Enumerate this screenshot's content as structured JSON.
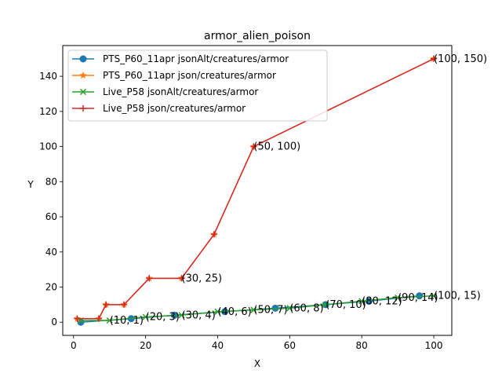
{
  "chart_data": {
    "type": "line",
    "title": "armor_alien_poison",
    "xlabel": "X",
    "ylabel": "Y",
    "xlim": [
      -3,
      105
    ],
    "ylim": [
      -7.5,
      157.5
    ],
    "xticks": [
      0,
      20,
      40,
      60,
      80,
      100
    ],
    "yticks": [
      0,
      20,
      40,
      60,
      80,
      100,
      120,
      140
    ],
    "legend_position": "top-left",
    "series": [
      {
        "name": "PTS_P60_11apr jsonAlt/creatures/armor",
        "color": "#1f77b4",
        "marker": "circle",
        "points": [
          [
            2,
            0
          ],
          [
            16,
            2
          ],
          [
            28,
            4
          ],
          [
            42,
            6
          ],
          [
            56,
            8
          ],
          [
            70,
            10
          ],
          [
            82,
            12
          ],
          [
            96,
            15
          ]
        ]
      },
      {
        "name": "PTS_P60_11apr json/creatures/armor",
        "color": "#ff7f0e",
        "marker": "star",
        "points": [
          [
            1,
            2
          ],
          [
            7,
            2
          ],
          [
            9,
            10
          ],
          [
            14,
            10
          ],
          [
            21,
            25
          ],
          [
            30,
            25
          ],
          [
            39,
            50
          ],
          [
            50,
            100
          ],
          [
            100,
            150
          ]
        ]
      },
      {
        "name": "Live_P58 jsonAlt/creatures/armor",
        "color": "#2ca02c",
        "marker": "x",
        "points": [
          [
            2,
            1
          ],
          [
            10,
            1
          ],
          [
            20,
            3
          ],
          [
            30,
            4
          ],
          [
            40,
            6
          ],
          [
            50,
            7
          ],
          [
            60,
            8
          ],
          [
            70,
            10
          ],
          [
            80,
            12
          ],
          [
            90,
            14
          ],
          [
            100,
            15
          ]
        ]
      },
      {
        "name": "Live_P58 json/creatures/armor",
        "color": "#d62728",
        "marker": "plus",
        "points": [
          [
            1,
            2
          ],
          [
            7,
            2
          ],
          [
            9,
            10
          ],
          [
            14,
            10
          ],
          [
            21,
            25
          ],
          [
            30,
            25
          ],
          [
            39,
            50
          ],
          [
            50,
            100
          ],
          [
            100,
            150
          ]
        ]
      }
    ],
    "annotations": [
      {
        "text": "(10, 1)",
        "x": 10,
        "y": 1
      },
      {
        "text": "(20, 3)",
        "x": 20,
        "y": 3
      },
      {
        "text": "(30, 4)",
        "x": 30,
        "y": 4
      },
      {
        "text": "(40, 6)",
        "x": 40,
        "y": 6
      },
      {
        "text": "(50, 7)",
        "x": 50,
        "y": 7
      },
      {
        "text": "(60, 8)",
        "x": 60,
        "y": 8
      },
      {
        "text": "(70, 10)",
        "x": 70,
        "y": 10
      },
      {
        "text": "(80, 12)",
        "x": 80,
        "y": 12
      },
      {
        "text": "(90, 14)",
        "x": 90,
        "y": 14
      },
      {
        "text": "(100, 15)",
        "x": 100,
        "y": 15
      },
      {
        "text": "(30, 25)",
        "x": 30,
        "y": 25
      },
      {
        "text": "(50, 100)",
        "x": 50,
        "y": 100
      },
      {
        "text": "(100, 150)",
        "x": 100,
        "y": 150
      }
    ]
  }
}
